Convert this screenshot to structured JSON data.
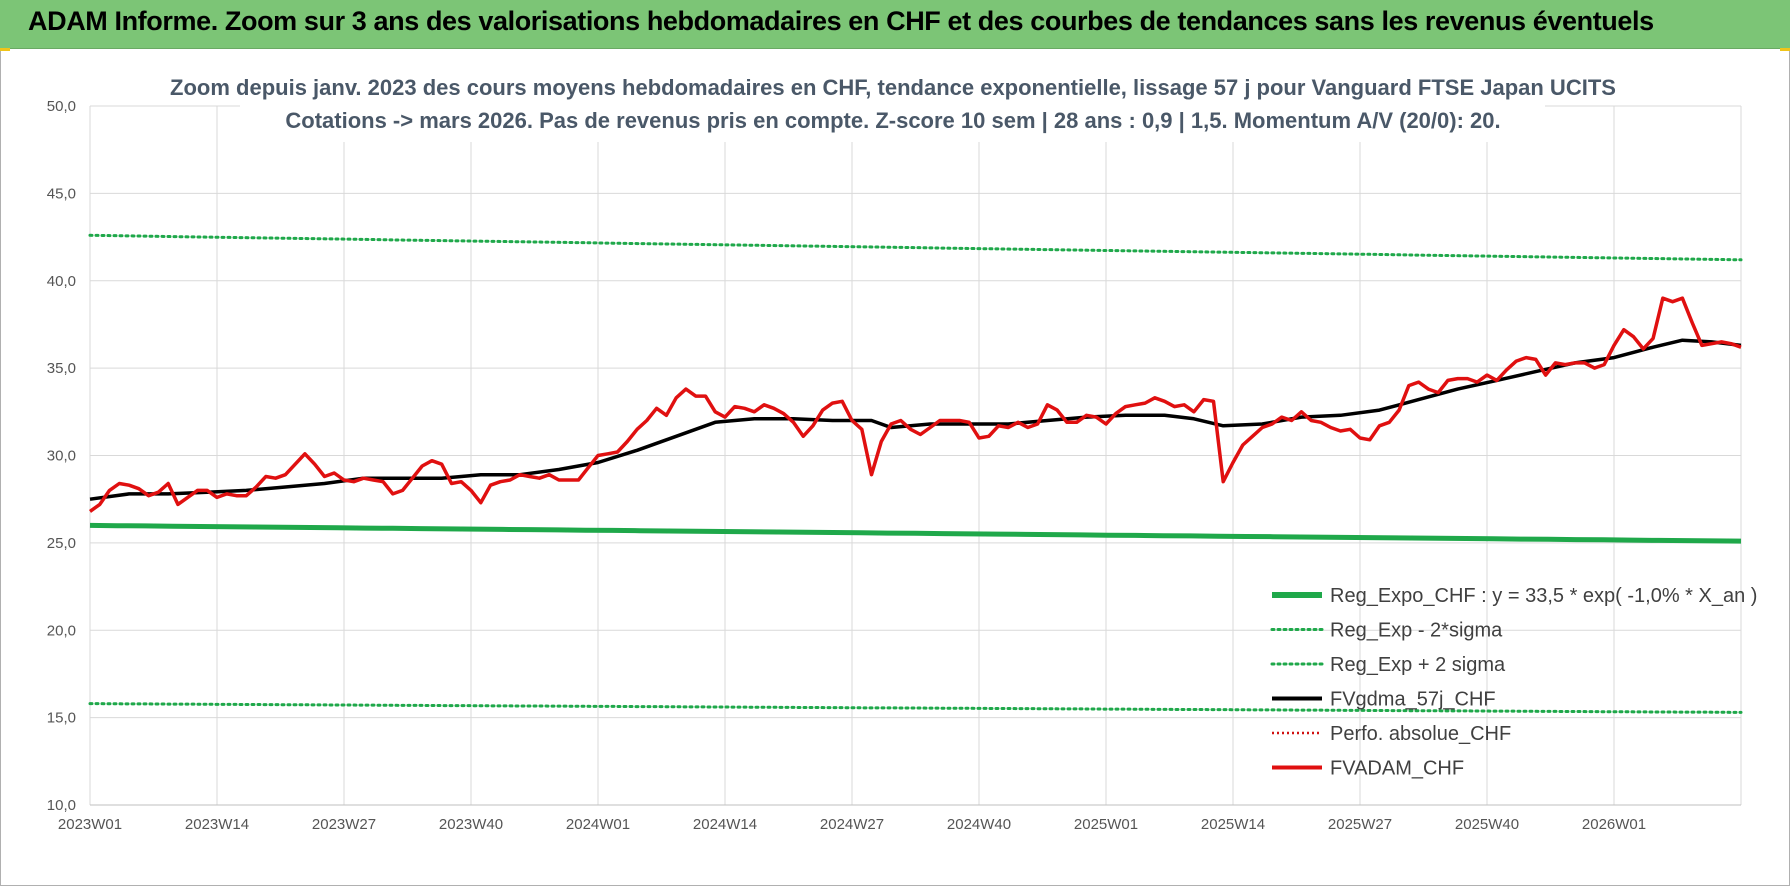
{
  "banner": {
    "title": "ADAM Informe. Zoom sur 3 ans des valorisations hebdomadaires en CHF et des courbes de tendances sans les revenus éventuels"
  },
  "colors": {
    "banner_bg": "#7cc576",
    "reg_expo": "#1fa84a",
    "sigma": "#1fa84a",
    "fvgdma": "#000000",
    "perfo": "#d01010",
    "fvadam": "#e01010",
    "grid": "#d9d9d9"
  },
  "chart_data": {
    "type": "line",
    "title_line1": "Zoom depuis janv. 2023 des cours moyens hebdomadaires en CHF, tendance exponentielle, lissage 57 j pour Vanguard FTSE Japan UCITS",
    "title_line2": "Cotations -> mars 2026. Pas de revenus pris en compte. Z-score 10 sem | 28 ans : 0,9 | 1,5. Momentum A/V (20/0): 20.",
    "xlabel": "",
    "ylabel": "",
    "ylim": [
      10,
      50
    ],
    "grid": true,
    "legend_position": "bottom-right",
    "y_ticks": [
      "10,0",
      "15,0",
      "20,0",
      "25,0",
      "30,0",
      "35,0",
      "40,0",
      "45,0",
      "50,0"
    ],
    "x_ticks": [
      "2023W01",
      "2023W14",
      "2023W27",
      "2023W40",
      "2024W01",
      "2024W14",
      "2024W27",
      "2024W40",
      "2025W01",
      "2025W14",
      "2025W27",
      "2025W40",
      "2026W01"
    ],
    "x_range_weeks": [
      0,
      169
    ],
    "series": [
      {
        "name": "Reg_Expo_CHF : y = 33,5 * exp( -1,0% *  X_an )",
        "style": "solid-thick",
        "start": 26.0,
        "end": 25.1
      },
      {
        "name": "Reg_Exp - 2*sigma",
        "style": "dotted",
        "start": 15.8,
        "end": 15.3
      },
      {
        "name": "Reg_Exp + 2 sigma",
        "style": "dotted",
        "start": 42.6,
        "end": 41.2
      },
      {
        "name": "FVgdma_57j_CHF",
        "style": "solid",
        "values": [
          [
            0,
            27.5
          ],
          [
            4,
            27.8
          ],
          [
            8,
            27.8
          ],
          [
            12,
            27.9
          ],
          [
            16,
            28.0
          ],
          [
            20,
            28.2
          ],
          [
            24,
            28.4
          ],
          [
            28,
            28.7
          ],
          [
            32,
            28.7
          ],
          [
            36,
            28.7
          ],
          [
            40,
            28.9
          ],
          [
            44,
            28.9
          ],
          [
            48,
            29.2
          ],
          [
            52,
            29.6
          ],
          [
            56,
            30.3
          ],
          [
            60,
            31.1
          ],
          [
            64,
            31.9
          ],
          [
            68,
            32.1
          ],
          [
            72,
            32.1
          ],
          [
            76,
            32.0
          ],
          [
            80,
            32.0
          ],
          [
            82,
            31.6
          ],
          [
            86,
            31.8
          ],
          [
            90,
            31.8
          ],
          [
            94,
            31.8
          ],
          [
            98,
            32.0
          ],
          [
            102,
            32.2
          ],
          [
            106,
            32.3
          ],
          [
            110,
            32.3
          ],
          [
            113,
            32.1
          ],
          [
            116,
            31.7
          ],
          [
            120,
            31.8
          ],
          [
            124,
            32.2
          ],
          [
            128,
            32.3
          ],
          [
            132,
            32.6
          ],
          [
            136,
            33.2
          ],
          [
            140,
            33.8
          ],
          [
            144,
            34.3
          ],
          [
            148,
            34.8
          ],
          [
            152,
            35.3
          ],
          [
            156,
            35.6
          ],
          [
            160,
            36.2
          ],
          [
            163,
            36.6
          ],
          [
            166,
            36.5
          ],
          [
            169,
            36.3
          ]
        ]
      },
      {
        "name": "Perfo. absolue_CHF",
        "style": "dotted",
        "values": []
      },
      {
        "name": "FVADAM_CHF",
        "style": "solid-thick",
        "values": [
          [
            0,
            26.8
          ],
          [
            1,
            27.2
          ],
          [
            2,
            28.0
          ],
          [
            3,
            28.4
          ],
          [
            4,
            28.3
          ],
          [
            5,
            28.1
          ],
          [
            6,
            27.7
          ],
          [
            7,
            27.9
          ],
          [
            8,
            28.4
          ],
          [
            9,
            27.2
          ],
          [
            10,
            27.6
          ],
          [
            11,
            28.0
          ],
          [
            12,
            28.0
          ],
          [
            13,
            27.6
          ],
          [
            14,
            27.8
          ],
          [
            15,
            27.7
          ],
          [
            16,
            27.7
          ],
          [
            17,
            28.2
          ],
          [
            18,
            28.8
          ],
          [
            19,
            28.7
          ],
          [
            20,
            28.9
          ],
          [
            21,
            29.5
          ],
          [
            22,
            30.1
          ],
          [
            23,
            29.5
          ],
          [
            24,
            28.8
          ],
          [
            25,
            29.0
          ],
          [
            26,
            28.6
          ],
          [
            27,
            28.5
          ],
          [
            28,
            28.7
          ],
          [
            29,
            28.6
          ],
          [
            30,
            28.5
          ],
          [
            31,
            27.8
          ],
          [
            32,
            28.0
          ],
          [
            33,
            28.7
          ],
          [
            34,
            29.4
          ],
          [
            35,
            29.7
          ],
          [
            36,
            29.5
          ],
          [
            37,
            28.4
          ],
          [
            38,
            28.5
          ],
          [
            39,
            28.0
          ],
          [
            40,
            27.3
          ],
          [
            41,
            28.3
          ],
          [
            42,
            28.5
          ],
          [
            43,
            28.6
          ],
          [
            44,
            28.9
          ],
          [
            45,
            28.8
          ],
          [
            46,
            28.7
          ],
          [
            47,
            28.9
          ],
          [
            48,
            28.6
          ],
          [
            49,
            28.6
          ],
          [
            50,
            28.6
          ],
          [
            51,
            29.3
          ],
          [
            52,
            30.0
          ],
          [
            53,
            30.1
          ],
          [
            54,
            30.2
          ],
          [
            55,
            30.8
          ],
          [
            56,
            31.5
          ],
          [
            57,
            32.0
          ],
          [
            58,
            32.7
          ],
          [
            59,
            32.3
          ],
          [
            60,
            33.3
          ],
          [
            61,
            33.8
          ],
          [
            62,
            33.4
          ],
          [
            63,
            33.4
          ],
          [
            64,
            32.5
          ],
          [
            65,
            32.2
          ],
          [
            66,
            32.8
          ],
          [
            67,
            32.7
          ],
          [
            68,
            32.5
          ],
          [
            69,
            32.9
          ],
          [
            70,
            32.7
          ],
          [
            71,
            32.4
          ],
          [
            72,
            31.9
          ],
          [
            73,
            31.1
          ],
          [
            74,
            31.7
          ],
          [
            75,
            32.6
          ],
          [
            76,
            33.0
          ],
          [
            77,
            33.1
          ],
          [
            78,
            32.0
          ],
          [
            79,
            31.5
          ],
          [
            80,
            28.9
          ],
          [
            81,
            30.8
          ],
          [
            82,
            31.8
          ],
          [
            83,
            32.0
          ],
          [
            84,
            31.5
          ],
          [
            85,
            31.2
          ],
          [
            86,
            31.6
          ],
          [
            87,
            32.0
          ],
          [
            88,
            32.0
          ],
          [
            89,
            32.0
          ],
          [
            90,
            31.9
          ],
          [
            91,
            31.0
          ],
          [
            92,
            31.1
          ],
          [
            93,
            31.7
          ],
          [
            94,
            31.6
          ],
          [
            95,
            31.9
          ],
          [
            96,
            31.6
          ],
          [
            97,
            31.8
          ],
          [
            98,
            32.9
          ],
          [
            99,
            32.6
          ],
          [
            100,
            31.9
          ],
          [
            101,
            31.9
          ],
          [
            102,
            32.3
          ],
          [
            103,
            32.2
          ],
          [
            104,
            31.8
          ],
          [
            105,
            32.4
          ],
          [
            106,
            32.8
          ],
          [
            107,
            32.9
          ],
          [
            108,
            33.0
          ],
          [
            109,
            33.3
          ],
          [
            110,
            33.1
          ],
          [
            111,
            32.8
          ],
          [
            112,
            32.9
          ],
          [
            113,
            32.5
          ],
          [
            114,
            33.2
          ],
          [
            115,
            33.1
          ],
          [
            116,
            28.5
          ],
          [
            117,
            29.6
          ],
          [
            118,
            30.6
          ],
          [
            119,
            31.1
          ],
          [
            120,
            31.6
          ],
          [
            121,
            31.8
          ],
          [
            122,
            32.2
          ],
          [
            123,
            32.0
          ],
          [
            124,
            32.5
          ],
          [
            125,
            32.0
          ],
          [
            126,
            31.9
          ],
          [
            127,
            31.6
          ],
          [
            128,
            31.4
          ],
          [
            129,
            31.5
          ],
          [
            130,
            31.0
          ],
          [
            131,
            30.9
          ],
          [
            132,
            31.7
          ],
          [
            133,
            31.9
          ],
          [
            134,
            32.6
          ],
          [
            135,
            34.0
          ],
          [
            136,
            34.2
          ],
          [
            137,
            33.8
          ],
          [
            138,
            33.6
          ],
          [
            139,
            34.3
          ],
          [
            140,
            34.4
          ],
          [
            141,
            34.4
          ],
          [
            142,
            34.2
          ],
          [
            143,
            34.6
          ],
          [
            144,
            34.3
          ],
          [
            145,
            34.9
          ],
          [
            146,
            35.4
          ],
          [
            147,
            35.6
          ],
          [
            148,
            35.5
          ],
          [
            149,
            34.6
          ],
          [
            150,
            35.3
          ],
          [
            151,
            35.2
          ],
          [
            152,
            35.3
          ],
          [
            153,
            35.3
          ],
          [
            154,
            35.0
          ],
          [
            155,
            35.2
          ],
          [
            156,
            36.3
          ],
          [
            157,
            37.2
          ],
          [
            158,
            36.8
          ],
          [
            159,
            36.1
          ],
          [
            160,
            36.7
          ],
          [
            161,
            39.0
          ],
          [
            162,
            38.8
          ],
          [
            163,
            39.0
          ],
          [
            164,
            37.6
          ],
          [
            165,
            36.3
          ],
          [
            166,
            36.4
          ],
          [
            167,
            36.5
          ],
          [
            168,
            36.4
          ],
          [
            169,
            36.2
          ]
        ]
      }
    ]
  }
}
